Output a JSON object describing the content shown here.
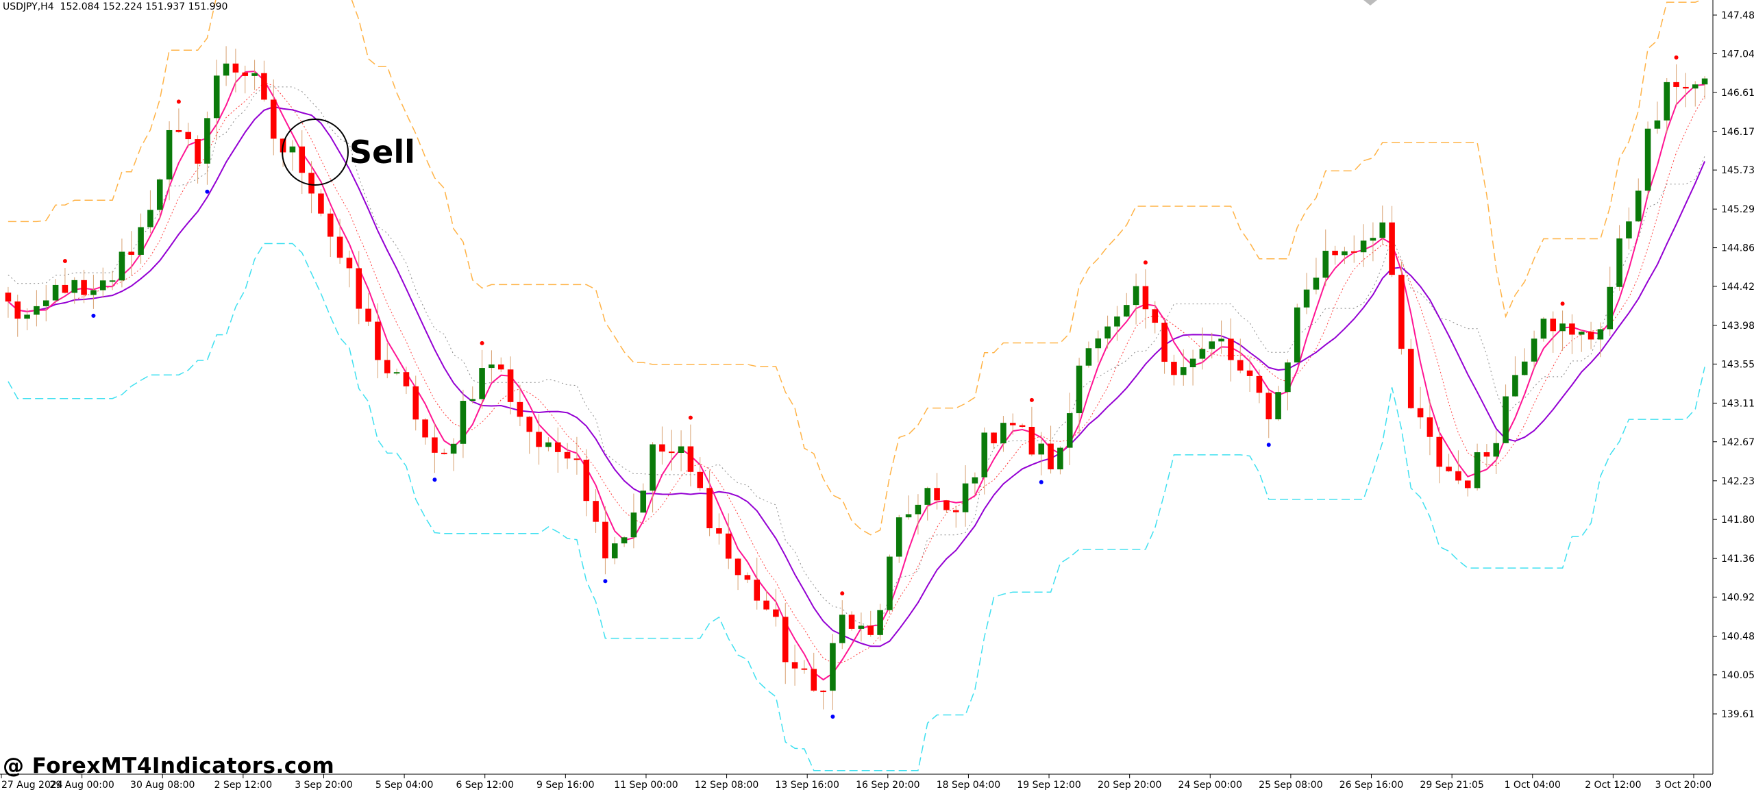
{
  "header": {
    "symbol": "USDJPY,H4",
    "ohlc": "152.084 152.224 151.937 151.990"
  },
  "watermark": "@ ForexMT4Indicators.com",
  "annotation": {
    "label": "Sell"
  },
  "colors": {
    "bull": "#0a7a0a",
    "bear": "#ff0000",
    "background": "#ffffff",
    "trend_slow": "#9400d3",
    "trend_fast": "#ff1493",
    "band_upper": "#ffb347",
    "band_lower": "#40e0f0",
    "signal_up": "#ff0000",
    "signal_down": "#0000ff",
    "axis": "#000000"
  },
  "chart_data": {
    "type": "candlestick",
    "symbol": "USDJPY",
    "timeframe": "H4",
    "ylim": [
      139.2,
      147.85
    ],
    "y_ticks": [
      "147.480",
      "147.045",
      "146.610",
      "146.170",
      "145.735",
      "145.295",
      "144.860",
      "144.425",
      "143.985",
      "143.550",
      "143.110",
      "142.675",
      "142.235",
      "141.800",
      "141.360",
      "140.925",
      "140.485",
      "140.050",
      "139.610"
    ],
    "x_ticks": [
      "27 Aug 2024",
      "29 Aug 00:00",
      "30 Aug 08:00",
      "2 Sep 12:00",
      "3 Sep 20:00",
      "5 Sep 04:00",
      "6 Sep 12:00",
      "9 Sep 16:00",
      "11 Sep 00:00",
      "12 Sep 08:00",
      "13 Sep 16:00",
      "16 Sep 20:00",
      "18 Sep 04:00",
      "19 Sep 12:00",
      "20 Sep 20:00",
      "24 Sep 00:00",
      "25 Sep 08:00",
      "26 Sep 16:00",
      "29 Sep 21:05",
      "1 Oct 04:00",
      "2 Oct 12:00",
      "3 Oct 20:00"
    ],
    "close_path": [
      144.2,
      144.0,
      144.5,
      144.2,
      144.6,
      145.1,
      146.1,
      145.9,
      147.0,
      146.8,
      146.0,
      145.8,
      145.0,
      144.2,
      143.5,
      143.1,
      142.3,
      143.2,
      143.6,
      143.0,
      142.5,
      142.7,
      141.5,
      141.7,
      142.6,
      142.5,
      141.9,
      141.2,
      140.9,
      140.2,
      139.8,
      140.7,
      140.4,
      141.6,
      142.2,
      141.7,
      142.5,
      143.0,
      142.6,
      142.4,
      143.9,
      143.9,
      144.3,
      143.6,
      143.6,
      143.8,
      143.3,
      143.0,
      144.3,
      144.8,
      144.9,
      145.2,
      143.1,
      142.5,
      142.2,
      142.6,
      143.5,
      144.2,
      143.8,
      143.9,
      145.0,
      146.2,
      146.8,
      146.6
    ]
  }
}
